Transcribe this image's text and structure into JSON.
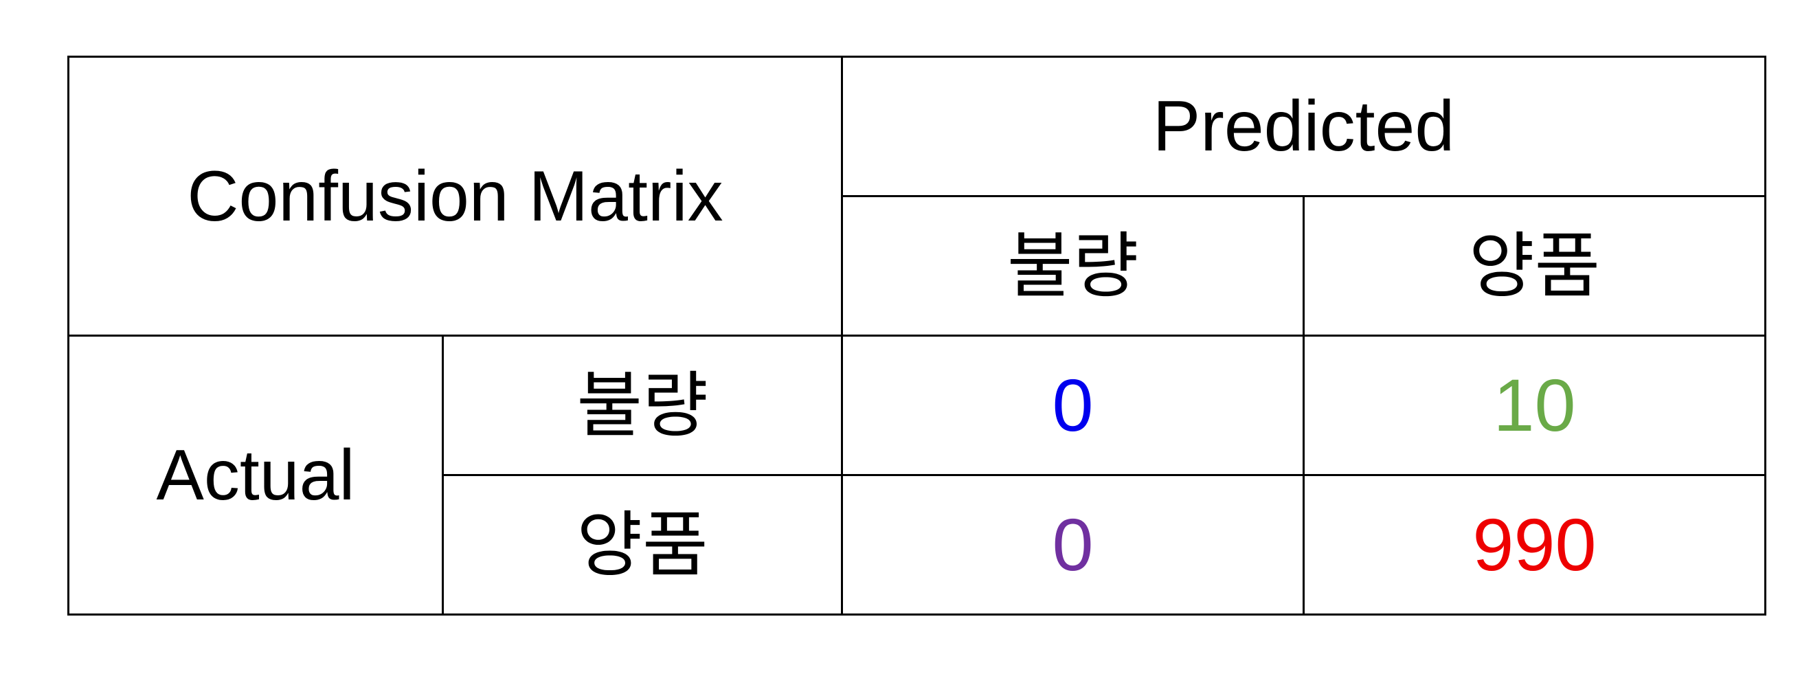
{
  "chart_data": {
    "type": "table",
    "title": "Confusion Matrix",
    "column_header": "Predicted",
    "row_header": "Actual",
    "column_labels": [
      "불량",
      "양품"
    ],
    "row_labels": [
      "불량",
      "양품"
    ],
    "cells": [
      [
        {
          "value": "0",
          "color": "#0000ee"
        },
        {
          "value": "10",
          "color": "#6aaa48"
        }
      ],
      [
        {
          "value": "0",
          "color": "#7030a0"
        },
        {
          "value": "990",
          "color": "#ee0000"
        }
      ]
    ]
  }
}
